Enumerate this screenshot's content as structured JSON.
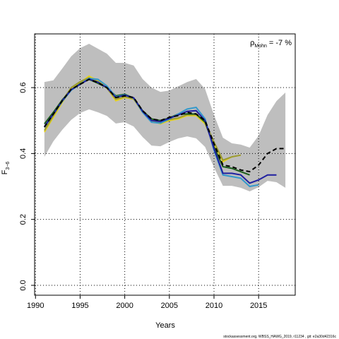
{
  "chart_data": {
    "type": "line",
    "x_label": "Years",
    "y_label": {
      "main": "F",
      "subscript": "3−6"
    },
    "annotation": {
      "symbol": "ρ",
      "subscript": "Mohn",
      "text": "= -7 %"
    },
    "footer": "stockassessment.org, WBSS_HAWG_2019, r11234 , git: e2a30d42316c",
    "xlim": [
      1989.9,
      2019.1
    ],
    "ylim": [
      -0.03,
      0.763
    ],
    "xticks": [
      1990,
      1995,
      2000,
      2005,
      2010,
      2015
    ],
    "yticks": [
      {
        "value": 0,
        "label": "0.0"
      },
      0.2,
      0.4,
      0.6
    ],
    "grid": true,
    "x": [
      1991,
      1992,
      1993,
      1994,
      1995,
      1996,
      1997,
      1998,
      1999,
      2000,
      2001,
      2002,
      2003,
      2004,
      2005,
      2006,
      2007,
      2008,
      2009,
      2010,
      2011,
      2012,
      2013,
      2014,
      2015,
      2016,
      2017,
      2018
    ],
    "band": {
      "color": "#bebebe",
      "upper": [
        0.617,
        0.622,
        0.658,
        0.695,
        0.72,
        0.733,
        0.718,
        0.703,
        0.675,
        0.675,
        0.667,
        0.626,
        0.6,
        0.587,
        0.591,
        0.604,
        0.617,
        0.626,
        0.596,
        0.517,
        0.448,
        0.431,
        0.427,
        0.418,
        0.454,
        0.517,
        0.559,
        0.585
      ],
      "lower": [
        0.39,
        0.437,
        0.472,
        0.502,
        0.523,
        0.534,
        0.525,
        0.514,
        0.491,
        0.495,
        0.482,
        0.45,
        0.424,
        0.422,
        0.435,
        0.446,
        0.452,
        0.446,
        0.42,
        0.358,
        0.302,
        0.302,
        0.296,
        0.285,
        0.298,
        0.317,
        0.313,
        0.296
      ]
    },
    "series": [
      {
        "color": "#e6d21e",
        "dash": false,
        "values": [
          0.465,
          0.51,
          0.555,
          0.595,
          0.615,
          0.635,
          0.62,
          0.6,
          0.56,
          0.57,
          0.565,
          0.525,
          0.5,
          0.49,
          0.5,
          0.505,
          0.515,
          0.515,
          0.49,
          0.43,
          0.375,
          0.39,
          0.395,
          null,
          null,
          null,
          null,
          null
        ]
      },
      {
        "color": "#999933",
        "dash": false,
        "values": [
          0.47,
          0.515,
          0.56,
          0.6,
          0.618,
          0.63,
          0.618,
          0.598,
          0.565,
          0.572,
          0.566,
          0.527,
          0.502,
          0.493,
          0.503,
          0.508,
          0.518,
          0.518,
          0.495,
          0.435,
          0.38,
          0.39,
          0.395,
          null,
          null,
          null,
          null,
          null
        ]
      },
      {
        "color": "#1a5c1a",
        "dash": false,
        "values": [
          0.49,
          0.525,
          0.563,
          0.593,
          0.612,
          0.625,
          0.613,
          0.6,
          0.575,
          0.58,
          0.568,
          0.53,
          0.505,
          0.5,
          0.508,
          0.52,
          0.52,
          0.52,
          0.495,
          0.42,
          0.36,
          0.355,
          0.345,
          0.335,
          null,
          null,
          null,
          null
        ]
      },
      {
        "color": "#3399cc",
        "dash": false,
        "values": [
          0.48,
          0.52,
          0.558,
          0.592,
          0.61,
          0.628,
          0.625,
          0.605,
          0.572,
          0.578,
          0.568,
          0.525,
          0.495,
          0.492,
          0.505,
          0.52,
          0.535,
          0.54,
          0.505,
          0.41,
          0.335,
          0.33,
          0.325,
          0.3,
          0.305,
          null,
          null,
          null
        ]
      },
      {
        "color": "#1f1fa0",
        "dash": false,
        "values": [
          0.482,
          0.52,
          0.56,
          0.594,
          0.61,
          0.626,
          0.616,
          0.6,
          0.57,
          0.577,
          0.569,
          0.528,
          0.5,
          0.497,
          0.507,
          0.517,
          0.528,
          0.53,
          0.5,
          0.415,
          0.34,
          0.34,
          0.335,
          0.31,
          0.32,
          0.335,
          0.335,
          null
        ]
      },
      {
        "color": "#000000",
        "dash": true,
        "values": [
          0.48,
          0.52,
          0.56,
          0.595,
          0.61,
          0.625,
          0.615,
          0.6,
          0.57,
          0.575,
          0.57,
          0.53,
          0.505,
          0.5,
          0.51,
          0.515,
          0.525,
          0.52,
          0.5,
          0.43,
          0.365,
          0.36,
          0.35,
          0.345,
          0.365,
          0.4,
          0.415,
          0.415
        ]
      }
    ]
  }
}
